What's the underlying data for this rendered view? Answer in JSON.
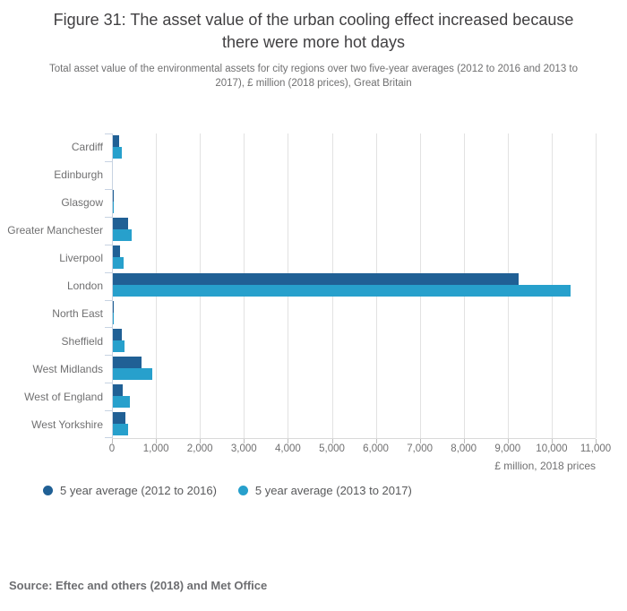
{
  "page": {
    "title": "Figure 31: The asset value of the urban cooling effect increased because there were more hot days",
    "subtitle": "Total asset value of the environmental assets for city regions over two five-year averages (2012 to 2016 and 2013 to 2017), £ million (2018 prices), Great Britain",
    "source": "Source: Eftec and others (2018) and Met Office"
  },
  "chart_data": {
    "type": "bar",
    "orientation": "horizontal",
    "title": "Figure 31: The asset value of the urban cooling effect increased because there were more hot days",
    "subtitle": "Total asset value of the environmental assets for city regions over two five-year averages (2012 to 2016 and 2013 to 2017), £ million (2018 prices), Great Britain",
    "categories": [
      "Cardiff",
      "Edinburgh",
      "Glasgow",
      "Greater Manchester",
      "Liverpool",
      "London",
      "North East",
      "Sheffield",
      "West Midlands",
      "West of England",
      "West Yorkshire"
    ],
    "series": [
      {
        "name": "5 year average (2012 to 2016)",
        "color": "#206095",
        "values": [
          145,
          0,
          28,
          355,
          155,
          9220,
          25,
          205,
          645,
          230,
          290
        ]
      },
      {
        "name": "5 year average (2013 to 2017)",
        "color": "#27a0cc",
        "values": [
          205,
          0,
          22,
          420,
          240,
          10410,
          25,
          255,
          900,
          380,
          340
        ]
      }
    ],
    "xlabel": "£ million, 2018 prices",
    "ylabel": "",
    "xlim": [
      0,
      11000
    ],
    "xtick_values": [
      0,
      1000,
      2000,
      3000,
      4000,
      5000,
      6000,
      7000,
      8000,
      9000,
      10000,
      11000
    ],
    "xtick_labels": [
      "0",
      "1,000",
      "2,000",
      "3,000",
      "4,000",
      "5,000",
      "6,000",
      "7,000",
      "8,000",
      "9,000",
      "10,000",
      "11,000"
    ],
    "grid": true,
    "legend_position": "bottom",
    "source": "Source: Eftec and others (2018) and Met Office"
  },
  "colors": {
    "series_dark_blue": "#206095",
    "series_light_blue": "#27a0cc",
    "title_text": "#414042",
    "muted_text": "#707071",
    "legend_text": "#58595b",
    "source_text": "#6d6e71",
    "gridline": "#e2e2e2",
    "y_axis": "#c7d3e2",
    "x_axis_line": "#d9d9d9"
  }
}
